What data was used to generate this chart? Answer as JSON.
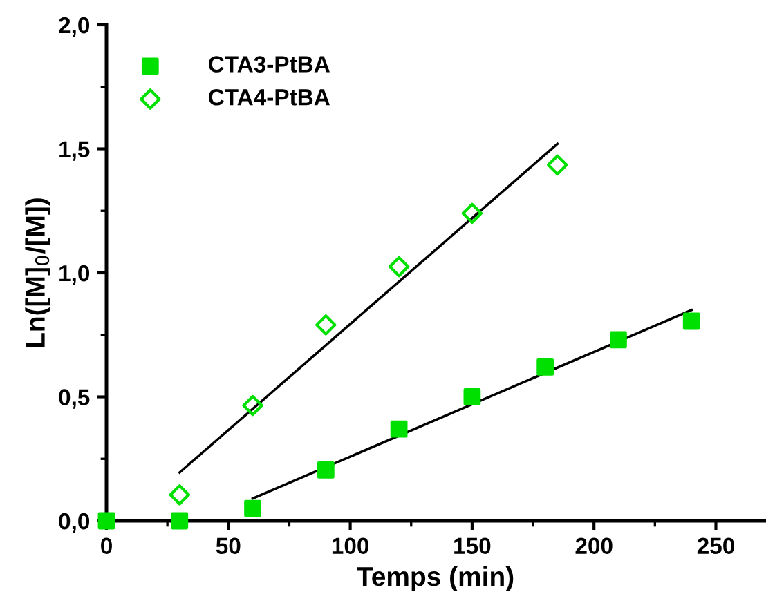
{
  "chart_data": {
    "type": "scatter",
    "xlabel": "Temps (min)",
    "ylabel": "Ln([M]$_{0}$/[M])",
    "xlim": [
      0,
      270
    ],
    "xticks": [
      0,
      50,
      100,
      150,
      200,
      250
    ],
    "ylim": [
      0,
      2.0
    ],
    "yticks": [
      {
        "value": 0,
        "label": "0,0"
      },
      {
        "value": 0.5,
        "label": "0,5"
      },
      {
        "value": 1.0,
        "label": "1,0"
      },
      {
        "value": 1.5,
        "label": "1,5"
      },
      {
        "value": 2.0,
        "label": "2,0"
      }
    ],
    "grid": false,
    "legend": "top left",
    "series": [
      {
        "name": "CTA3-PtBA",
        "color": "#00e000",
        "marker": "square",
        "x": [
          0,
          30,
          60,
          90,
          120,
          150,
          180,
          210,
          240
        ],
        "values": [
          0,
          0,
          0.05,
          0.205,
          0.37,
          0.5,
          0.62,
          0.73,
          0.805
        ]
      },
      {
        "name": "CTA4-PtBA",
        "color": "#00e000",
        "marker": "diamond",
        "x": [
          30,
          60,
          90,
          120,
          150,
          185
        ],
        "values": [
          0.105,
          0.465,
          0.79,
          1.025,
          1.24,
          1.435
        ]
      },
      {
        "type": "line",
        "color": "#000000",
        "marker": "none",
        "x": [
          60,
          240
        ],
        "values": [
          0.09,
          0.85
        ]
      },
      {
        "type": "line",
        "color": "#000000",
        "marker": "none",
        "x": [
          30,
          185
        ],
        "values": [
          0.195,
          1.52
        ]
      }
    ]
  }
}
